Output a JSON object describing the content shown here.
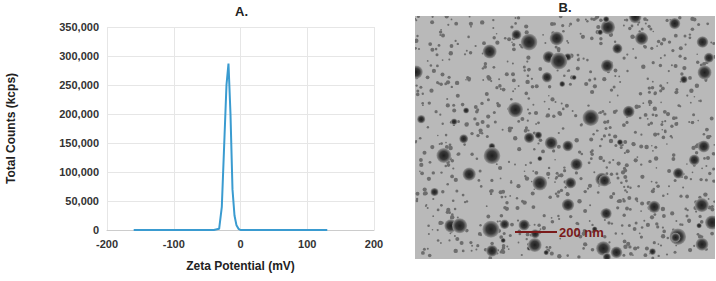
{
  "chart_data": {
    "type": "line",
    "title": "A.",
    "x_label": "Zeta Potential (mV)",
    "y_label": "Total Counts (kcps)",
    "x": [
      -160,
      -40,
      -32,
      -28,
      -24,
      -21,
      -18,
      -15,
      -12,
      -9,
      -6,
      -3,
      0,
      130
    ],
    "series": [
      {
        "name": "Zeta Potential",
        "color": "#3a9bd0",
        "values": [
          0,
          0,
          2000,
          40000,
          160000,
          250000,
          287000,
          200000,
          70000,
          25000,
          8000,
          2000,
          0,
          0
        ]
      }
    ],
    "xlim": [
      -200,
      200
    ],
    "xticks": [
      -200,
      -100,
      0,
      100,
      200
    ],
    "ylim": [
      0,
      350000
    ],
    "yticks": [
      0,
      {
        "value": 50000,
        "label": "50,000"
      },
      {
        "value": 100000,
        "label": "100,000"
      },
      {
        "value": 150000,
        "label": "150,000"
      },
      {
        "value": 200000,
        "label": "200,000"
      },
      {
        "value": 250000,
        "label": "250,000"
      },
      {
        "value": 300000,
        "label": "300,000"
      },
      {
        "value": 350000,
        "label": "350,000"
      }
    ],
    "grid": true
  },
  "image_panel": {
    "title": "B.",
    "scale_bar_label": "200 nm"
  }
}
